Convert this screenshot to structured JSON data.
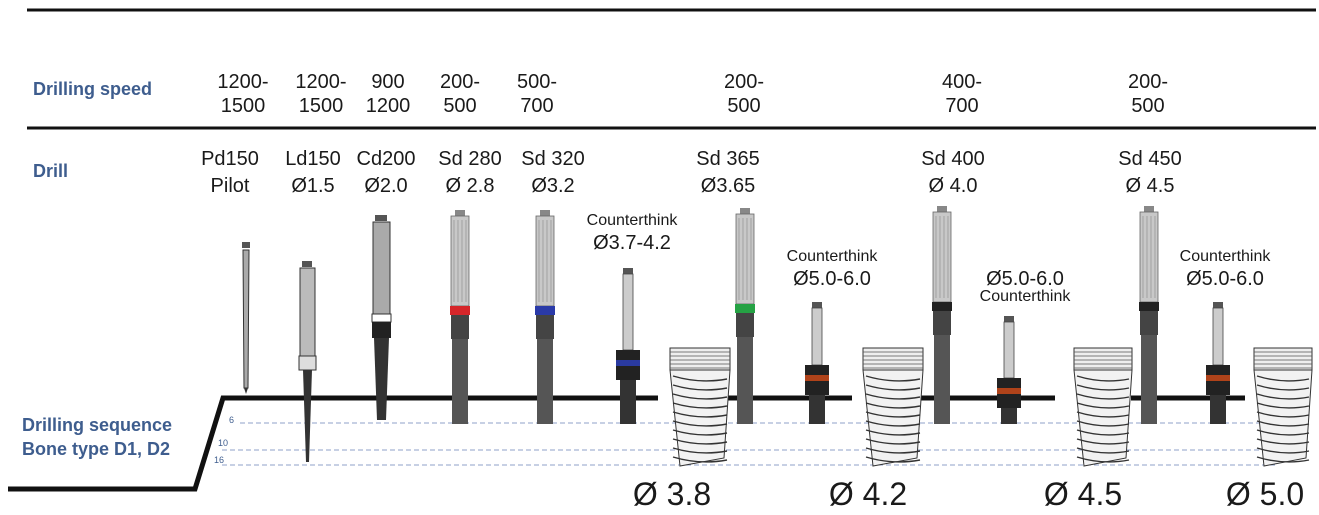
{
  "labels": {
    "drilling_speed": "Drilling speed",
    "drill": "Drill",
    "sequence_line1": "Drilling sequence",
    "sequence_line2": "Bone type D1, D2"
  },
  "speeds": [
    {
      "l1": "1200-",
      "l2": "1500"
    },
    {
      "l1": "1200-",
      "l2": "1500"
    },
    {
      "l1": "900",
      "l2": "1200"
    },
    {
      "l1": "200-",
      "l2": "500"
    },
    {
      "l1": "500-",
      "l2": "700"
    },
    {
      "l1": "200-",
      "l2": "500"
    },
    {
      "l1": "400-",
      "l2": "700"
    },
    {
      "l1": "200-",
      "l2": "500"
    }
  ],
  "drills": [
    {
      "l1": "Pd150",
      "l2": "Pilot"
    },
    {
      "l1": "Ld150",
      "l2": "Ø1.5"
    },
    {
      "l1": "Cd200",
      "l2": "Ø2.0"
    },
    {
      "l1": "Sd 280",
      "l2": "Ø 2.8"
    },
    {
      "l1": "Sd 320",
      "l2": "Ø3.2"
    },
    {
      "l1": "Sd 365",
      "l2": "Ø3.65"
    },
    {
      "l1": "Sd 400",
      "l2": "Ø 4.0"
    },
    {
      "l1": "Sd 450",
      "l2": "Ø 4.5"
    }
  ],
  "countersinks": [
    {
      "l1": "Counterthink",
      "l2": "Ø3.7-4.2",
      "band": "#2a3aa0"
    },
    {
      "l1": "Counterthink",
      "l2": "Ø5.0-6.0",
      "band": "#b0431a"
    },
    {
      "l1": "Ø5.0-6.0",
      "l2": "Counterthink",
      "band": "#b0431a"
    },
    {
      "l1": "Counterthink",
      "l2": "Ø5.0-6.0",
      "band": "#b0431a"
    }
  ],
  "drill_band_colors": {
    "sd280": "#d6262a",
    "sd320": "#2a3aa8",
    "sd365": "#25a244",
    "sd400": "#222222",
    "sd450": "#222222"
  },
  "implants": [
    "Ø 3.8",
    "Ø 4.2",
    "Ø 4.5",
    "Ø 5.0"
  ],
  "depth_marks": [
    "6",
    "10",
    "16"
  ],
  "colors": {
    "label_blue": "#3e5d8e",
    "guide_line": "#8fa0c8"
  }
}
